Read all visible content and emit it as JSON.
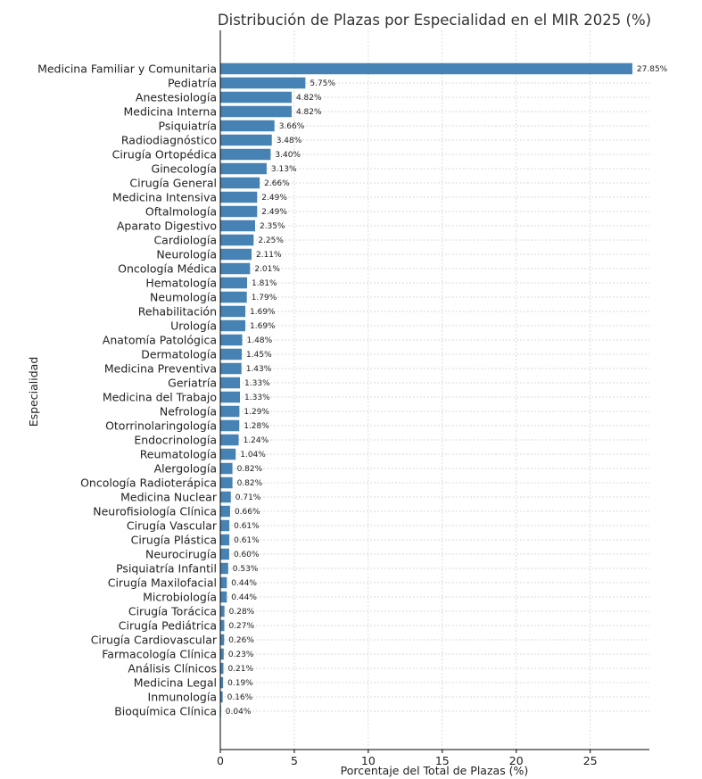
{
  "chart_data": {
    "type": "bar",
    "orientation": "horizontal",
    "title": "Distribución de Plazas por Especialidad en el MIR 2025 (%)",
    "xlabel": "Porcentaje del Total de Plazas (%)",
    "ylabel": "Especialidad",
    "xlim": [
      0,
      29
    ],
    "xticks": [
      "0",
      "5",
      "10",
      "15",
      "20",
      "25"
    ],
    "grid": true,
    "bar_color": "#4682b4",
    "categories": [
      "Medicina Familiar y Comunitaria",
      "Pediatría",
      "Anestesiología",
      "Medicina Interna",
      "Psiquiatría",
      "Radiodiagnóstico",
      "Cirugía Ortopédica",
      "Ginecología",
      "Cirugía General",
      "Medicina Intensiva",
      "Oftalmología",
      "Aparato Digestivo",
      "Cardiología",
      "Neurología",
      "Oncología Médica",
      "Hematología",
      "Neumología",
      "Rehabilitación",
      "Urología",
      "Anatomía Patológica",
      "Dermatología",
      "Medicina Preventiva",
      "Geriatría",
      "Medicina del Trabajo",
      "Nefrología",
      "Otorrinolaringología",
      "Endocrinología",
      "Reumatología",
      "Alergología",
      "Oncología Radioterápica",
      "Medicina Nuclear",
      "Neurofisiología Clínica",
      "Cirugía Vascular",
      "Cirugía Plástica",
      "Neurocirugía",
      "Psiquiatría Infantil",
      "Cirugía Maxilofacial",
      "Microbiología",
      "Cirugía Torácica",
      "Cirugía Pediátrica",
      "Cirugía Cardiovascular",
      "Farmacología Clínica",
      "Análisis Clínicos",
      "Medicina Legal",
      "Inmunología",
      "Bioquímica Clínica"
    ],
    "values": [
      27.85,
      5.75,
      4.82,
      4.82,
      3.66,
      3.48,
      3.4,
      3.13,
      2.66,
      2.49,
      2.49,
      2.35,
      2.25,
      2.11,
      2.01,
      1.81,
      1.79,
      1.69,
      1.69,
      1.48,
      1.45,
      1.43,
      1.33,
      1.33,
      1.29,
      1.28,
      1.24,
      1.04,
      0.82,
      0.82,
      0.71,
      0.66,
      0.61,
      0.61,
      0.6,
      0.53,
      0.44,
      0.44,
      0.28,
      0.27,
      0.26,
      0.23,
      0.21,
      0.19,
      0.16,
      0.04
    ],
    "value_labels": [
      "27.85%",
      "5.75%",
      "4.82%",
      "4.82%",
      "3.66%",
      "3.48%",
      "3.40%",
      "3.13%",
      "2.66%",
      "2.49%",
      "2.49%",
      "2.35%",
      "2.25%",
      "2.11%",
      "2.01%",
      "1.81%",
      "1.79%",
      "1.69%",
      "1.69%",
      "1.48%",
      "1.45%",
      "1.43%",
      "1.33%",
      "1.33%",
      "1.29%",
      "1.28%",
      "1.24%",
      "1.04%",
      "0.82%",
      "0.82%",
      "0.71%",
      "0.66%",
      "0.61%",
      "0.61%",
      "0.60%",
      "0.53%",
      "0.44%",
      "0.44%",
      "0.28%",
      "0.27%",
      "0.26%",
      "0.23%",
      "0.21%",
      "0.19%",
      "0.16%",
      "0.04%"
    ]
  }
}
